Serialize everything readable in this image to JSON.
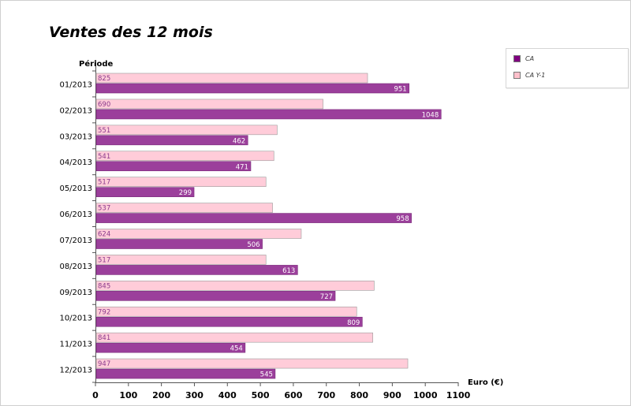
{
  "chart_data": {
    "type": "bar",
    "orientation": "horizontal",
    "title": "Ventes des 12 mois",
    "ylabel": "Période",
    "xlabel": "Euro (€)",
    "categories": [
      "01/2013",
      "02/2013",
      "03/2013",
      "04/2013",
      "05/2013",
      "06/2013",
      "07/2013",
      "08/2013",
      "09/2013",
      "10/2013",
      "11/2013",
      "12/2013"
    ],
    "series": [
      {
        "name": "CA Y-1",
        "color": "#ffccd9",
        "label_color": "#8c3a8c",
        "values": [
          825,
          690,
          551,
          541,
          517,
          537,
          624,
          517,
          845,
          792,
          841,
          947
        ]
      },
      {
        "name": "CA",
        "color": "#9b3f9b",
        "label_color": "#ffffff",
        "values": [
          951,
          1048,
          462,
          471,
          299,
          958,
          506,
          613,
          727,
          809,
          454,
          545
        ]
      }
    ],
    "xlim": [
      0,
      1100
    ],
    "xticks": [
      0,
      100,
      200,
      300,
      400,
      500,
      600,
      700,
      800,
      900,
      1000,
      1100
    ],
    "grid": false,
    "legend_position": "top-right"
  },
  "legend": {
    "items": [
      {
        "label": "CA",
        "color": "#800080"
      },
      {
        "label": "CA Y-1",
        "color": "#ffc0cb"
      }
    ]
  }
}
